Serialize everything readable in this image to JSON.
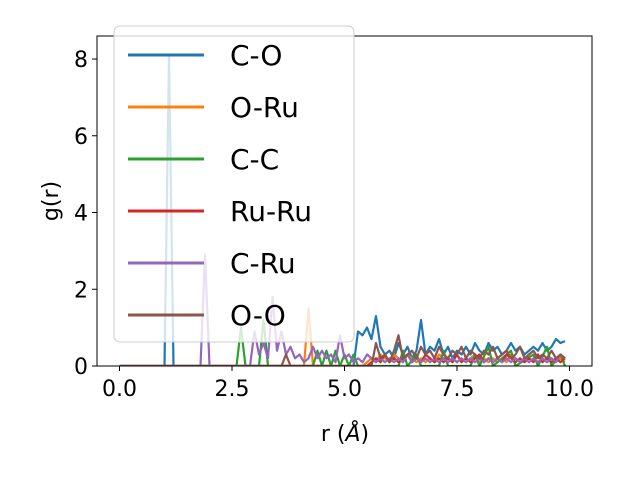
{
  "chart_data": {
    "type": "line",
    "xlabel": "r (",
    "xlabel_unit": "Å",
    "xlabel_close": ")",
    "ylabel": "g(r)",
    "xlim": [
      -0.5,
      10.5
    ],
    "ylim": [
      0,
      8.6
    ],
    "xticks": [
      0.0,
      2.5,
      5.0,
      7.5,
      10.0
    ],
    "xtick_labels": [
      "0.0",
      "2.5",
      "5.0",
      "7.5",
      "10.0"
    ],
    "yticks": [
      0,
      2,
      4,
      6,
      8
    ],
    "ytick_labels": [
      "0",
      "2",
      "4",
      "6",
      "8"
    ],
    "grid": false,
    "legend_position": "top-left",
    "series": [
      {
        "name": "C-O",
        "color": "#1f77b4",
        "points": [
          [
            0,
            0
          ],
          [
            1.0,
            0
          ],
          [
            1.1,
            8.1
          ],
          [
            1.2,
            0
          ],
          [
            5.2,
            0
          ],
          [
            5.3,
            0.9
          ],
          [
            5.4,
            0.8
          ],
          [
            5.5,
            1.0
          ],
          [
            5.6,
            0.7
          ],
          [
            5.7,
            1.3
          ],
          [
            5.8,
            0.5
          ],
          [
            5.9,
            0.3
          ],
          [
            6.0,
            0.4
          ],
          [
            6.1,
            0.2
          ],
          [
            6.2,
            0.6
          ],
          [
            6.3,
            0.3
          ],
          [
            6.4,
            0.5
          ],
          [
            6.5,
            0.2
          ],
          [
            6.6,
            0.4
          ],
          [
            6.7,
            1.2
          ],
          [
            6.8,
            0.3
          ],
          [
            6.9,
            0.5
          ],
          [
            7.0,
            0.4
          ],
          [
            7.1,
            0.7
          ],
          [
            7.2,
            0.3
          ],
          [
            7.3,
            0.5
          ],
          [
            7.4,
            0.2
          ],
          [
            7.5,
            0.4
          ],
          [
            7.6,
            0.3
          ],
          [
            7.7,
            0.5
          ],
          [
            7.8,
            0.3
          ],
          [
            7.9,
            0.6
          ],
          [
            8.0,
            0.4
          ],
          [
            8.1,
            0.3
          ],
          [
            8.2,
            0.6
          ],
          [
            8.3,
            0.4
          ],
          [
            8.4,
            0.5
          ],
          [
            8.5,
            0.3
          ],
          [
            8.6,
            0.4
          ],
          [
            8.7,
            0.6
          ],
          [
            8.8,
            0.4
          ],
          [
            8.9,
            0.5
          ],
          [
            9.0,
            0.3
          ],
          [
            9.1,
            0.4
          ],
          [
            9.2,
            0.5
          ],
          [
            9.3,
            0.4
          ],
          [
            9.4,
            0.6
          ],
          [
            9.5,
            0.4
          ],
          [
            9.6,
            0.5
          ],
          [
            9.7,
            0.7
          ],
          [
            9.8,
            0.6
          ],
          [
            9.9,
            0.65
          ]
        ]
      },
      {
        "name": "O-Ru",
        "color": "#ff7f0e",
        "points": [
          [
            0,
            0
          ],
          [
            4.1,
            0
          ],
          [
            4.2,
            1.5
          ],
          [
            4.3,
            0
          ],
          [
            5.4,
            0
          ],
          [
            5.5,
            0.1
          ],
          [
            5.6,
            0.2
          ],
          [
            5.7,
            0.1
          ],
          [
            5.8,
            0.3
          ],
          [
            5.9,
            0.2
          ],
          [
            6.0,
            0.1
          ],
          [
            6.1,
            0.3
          ],
          [
            6.2,
            0.2
          ],
          [
            6.3,
            0.1
          ],
          [
            6.4,
            0.3
          ],
          [
            6.5,
            0.2
          ],
          [
            6.6,
            0.1
          ],
          [
            6.7,
            0.2
          ],
          [
            6.8,
            0.1
          ],
          [
            6.9,
            0.2
          ],
          [
            7.0,
            0.1
          ],
          [
            7.1,
            0.3
          ],
          [
            7.2,
            0.2
          ],
          [
            7.3,
            0.1
          ],
          [
            7.4,
            0.2
          ],
          [
            7.5,
            0.1
          ],
          [
            7.6,
            0.2
          ],
          [
            7.7,
            0.1
          ],
          [
            7.8,
            0.2
          ],
          [
            7.9,
            0.3
          ],
          [
            8.0,
            0.1
          ],
          [
            8.1,
            0.2
          ],
          [
            8.2,
            0.1
          ],
          [
            8.3,
            0.2
          ],
          [
            8.4,
            0.1
          ],
          [
            8.5,
            0.2
          ],
          [
            8.6,
            0.1
          ],
          [
            8.7,
            0.3
          ],
          [
            8.8,
            0.2
          ],
          [
            8.9,
            0.1
          ],
          [
            9.0,
            0.2
          ],
          [
            9.1,
            0.1
          ],
          [
            9.2,
            0.2
          ],
          [
            9.3,
            0.1
          ],
          [
            9.4,
            0.2
          ],
          [
            9.5,
            0.1
          ],
          [
            9.6,
            0.2
          ],
          [
            9.7,
            0.1
          ],
          [
            9.8,
            0.2
          ],
          [
            9.9,
            0.1
          ]
        ]
      },
      {
        "name": "C-C",
        "color": "#2ca02c",
        "points": [
          [
            0,
            0
          ],
          [
            2.6,
            0
          ],
          [
            2.7,
            1.0
          ],
          [
            2.8,
            0
          ],
          [
            3.1,
            0
          ],
          [
            3.2,
            1.2
          ],
          [
            3.3,
            0
          ],
          [
            4.3,
            0
          ],
          [
            4.4,
            0.4
          ],
          [
            4.5,
            0
          ],
          [
            4.6,
            0.4
          ],
          [
            4.7,
            0
          ],
          [
            4.8,
            0.4
          ],
          [
            4.9,
            0
          ],
          [
            5.0,
            0.3
          ],
          [
            5.1,
            0
          ],
          [
            5.2,
            0.3
          ],
          [
            5.3,
            0
          ],
          [
            6.2,
            0
          ],
          [
            6.3,
            0.4
          ],
          [
            6.4,
            0
          ],
          [
            6.6,
            0.3
          ],
          [
            6.7,
            0
          ],
          [
            7.1,
            0
          ],
          [
            7.2,
            0.4
          ],
          [
            7.3,
            0
          ],
          [
            7.8,
            0
          ],
          [
            7.9,
            0.3
          ],
          [
            8.0,
            0
          ],
          [
            8.2,
            0.5
          ],
          [
            8.3,
            0
          ],
          [
            8.7,
            0.4
          ],
          [
            8.8,
            0
          ],
          [
            9.2,
            0.3
          ],
          [
            9.3,
            0
          ],
          [
            9.5,
            0.5
          ],
          [
            9.6,
            0
          ],
          [
            9.8,
            0.3
          ],
          [
            9.9,
            0
          ]
        ]
      },
      {
        "name": "Ru-Ru",
        "color": "#d62728",
        "points": [
          [
            0,
            0
          ],
          [
            5.5,
            0
          ],
          [
            5.6,
            0.1
          ],
          [
            5.7,
            0.2
          ],
          [
            5.8,
            0.1
          ],
          [
            5.9,
            0.3
          ],
          [
            6.0,
            0.1
          ],
          [
            6.1,
            0.2
          ],
          [
            6.2,
            0.1
          ],
          [
            6.3,
            0.2
          ],
          [
            6.4,
            0.3
          ],
          [
            6.5,
            0.1
          ],
          [
            6.6,
            0.2
          ],
          [
            6.7,
            0.1
          ],
          [
            6.8,
            0.3
          ],
          [
            6.9,
            0.2
          ],
          [
            7.0,
            0.1
          ],
          [
            7.1,
            0.2
          ],
          [
            7.2,
            0.1
          ],
          [
            7.3,
            0.2
          ],
          [
            7.4,
            0.1
          ],
          [
            7.5,
            0.3
          ],
          [
            7.6,
            0.1
          ],
          [
            7.7,
            0.2
          ],
          [
            7.8,
            0.1
          ],
          [
            7.9,
            0.2
          ],
          [
            8.0,
            0.3
          ],
          [
            8.1,
            0.1
          ],
          [
            8.2,
            0.2
          ],
          [
            8.3,
            0.1
          ],
          [
            8.4,
            0.2
          ],
          [
            8.5,
            0.1
          ],
          [
            8.6,
            0.3
          ],
          [
            8.7,
            0.2
          ],
          [
            8.8,
            0.1
          ],
          [
            8.9,
            0.2
          ],
          [
            9.0,
            0.1
          ],
          [
            9.1,
            0.2
          ],
          [
            9.2,
            0.1
          ],
          [
            9.3,
            0.3
          ],
          [
            9.4,
            0.1
          ],
          [
            9.5,
            0.2
          ],
          [
            9.6,
            0.1
          ],
          [
            9.7,
            0.2
          ],
          [
            9.8,
            0.1
          ],
          [
            9.9,
            0.2
          ]
        ]
      },
      {
        "name": "C-Ru",
        "color": "#9467bd",
        "points": [
          [
            0,
            0
          ],
          [
            1.8,
            0
          ],
          [
            1.9,
            2.9
          ],
          [
            2.0,
            0
          ],
          [
            2.9,
            0
          ],
          [
            3.0,
            0.9
          ],
          [
            3.1,
            0.3
          ],
          [
            3.2,
            0.6
          ],
          [
            3.3,
            0.2
          ],
          [
            3.4,
            1.8
          ],
          [
            3.5,
            0.4
          ],
          [
            3.6,
            0.9
          ],
          [
            3.7,
            0.3
          ],
          [
            3.8,
            0.5
          ],
          [
            3.9,
            0.2
          ],
          [
            4.0,
            0.3
          ],
          [
            4.1,
            0.1
          ],
          [
            4.2,
            0.2
          ],
          [
            4.3,
            0.5
          ],
          [
            4.4,
            0.2
          ],
          [
            4.5,
            0.4
          ],
          [
            4.6,
            0.2
          ],
          [
            4.7,
            0.3
          ],
          [
            4.8,
            0.1
          ],
          [
            4.9,
            0.8
          ],
          [
            5.0,
            0.2
          ],
          [
            5.1,
            0.3
          ],
          [
            5.2,
            0.1
          ],
          [
            5.3,
            0.2
          ],
          [
            5.4,
            0.1
          ],
          [
            5.5,
            0.3
          ],
          [
            5.6,
            0.2
          ],
          [
            5.7,
            0.1
          ],
          [
            5.8,
            0.2
          ],
          [
            5.9,
            0.1
          ],
          [
            6.0,
            0.2
          ],
          [
            6.1,
            0.1
          ],
          [
            6.2,
            0.2
          ],
          [
            6.3,
            0.1
          ],
          [
            6.4,
            0.3
          ],
          [
            6.5,
            0.1
          ],
          [
            6.6,
            0.2
          ],
          [
            6.7,
            0.1
          ],
          [
            6.8,
            0.2
          ],
          [
            6.9,
            0.1
          ],
          [
            7.0,
            0.2
          ],
          [
            7.1,
            0.1
          ],
          [
            7.2,
            0.2
          ],
          [
            7.3,
            0.1
          ],
          [
            7.4,
            0.2
          ],
          [
            7.5,
            0.1
          ],
          [
            7.6,
            0.2
          ],
          [
            7.7,
            0.1
          ],
          [
            7.8,
            0.2
          ],
          [
            7.9,
            0.1
          ],
          [
            8.0,
            0.2
          ],
          [
            8.1,
            0.1
          ],
          [
            8.2,
            0.2
          ],
          [
            8.3,
            0.1
          ],
          [
            8.4,
            0.2
          ],
          [
            8.5,
            0.1
          ],
          [
            8.6,
            0.2
          ],
          [
            8.7,
            0.1
          ],
          [
            8.8,
            0.2
          ],
          [
            8.9,
            0.1
          ],
          [
            9.0,
            0.2
          ],
          [
            9.1,
            0.1
          ],
          [
            9.2,
            0.2
          ],
          [
            9.3,
            0.1
          ],
          [
            9.4,
            0.2
          ],
          [
            9.5,
            0.1
          ],
          [
            9.6,
            0.2
          ],
          [
            9.7,
            0.1
          ],
          [
            9.8,
            0.3
          ],
          [
            9.9,
            0.2
          ]
        ]
      },
      {
        "name": "O-O",
        "color": "#8c564b",
        "points": [
          [
            0,
            0
          ],
          [
            3.6,
            0
          ],
          [
            3.7,
            0.3
          ],
          [
            3.8,
            0
          ],
          [
            5.6,
            0
          ],
          [
            5.7,
            0.6
          ],
          [
            5.8,
            0.2
          ],
          [
            5.9,
            0.3
          ],
          [
            6.0,
            0.1
          ],
          [
            6.1,
            0.4
          ],
          [
            6.2,
            0.8
          ],
          [
            6.3,
            0.2
          ],
          [
            6.4,
            0.3
          ],
          [
            6.5,
            0.4
          ],
          [
            6.6,
            0.2
          ],
          [
            6.7,
            0.5
          ],
          [
            6.8,
            0.3
          ],
          [
            6.9,
            0.4
          ],
          [
            7.0,
            0.2
          ],
          [
            7.1,
            0.5
          ],
          [
            7.2,
            0.3
          ],
          [
            7.3,
            0.2
          ],
          [
            7.4,
            0.4
          ],
          [
            7.5,
            0.3
          ],
          [
            7.6,
            0.5
          ],
          [
            7.7,
            0.2
          ],
          [
            7.8,
            0.4
          ],
          [
            7.9,
            0.3
          ],
          [
            8.0,
            0.2
          ],
          [
            8.1,
            0.4
          ],
          [
            8.2,
            0.3
          ],
          [
            8.3,
            0.5
          ],
          [
            8.4,
            0.2
          ],
          [
            8.5,
            0.3
          ],
          [
            8.6,
            0.4
          ],
          [
            8.7,
            0.2
          ],
          [
            8.8,
            0.3
          ],
          [
            8.9,
            0.5
          ],
          [
            9.0,
            0.2
          ],
          [
            9.1,
            0.3
          ],
          [
            9.2,
            0.4
          ],
          [
            9.3,
            0.2
          ],
          [
            9.4,
            0.3
          ],
          [
            9.5,
            0.2
          ],
          [
            9.6,
            0.4
          ],
          [
            9.7,
            0.2
          ],
          [
            9.8,
            0.3
          ],
          [
            9.9,
            0.2
          ]
        ]
      }
    ]
  }
}
